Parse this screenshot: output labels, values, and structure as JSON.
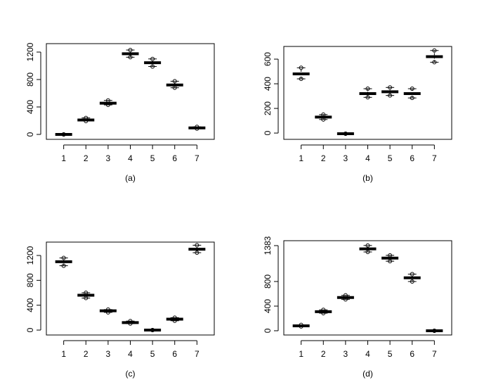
{
  "chart_data": [
    {
      "type": "box",
      "caption": "(a)",
      "categories": [
        "1",
        "2",
        "3",
        "4",
        "5",
        "6",
        "7"
      ],
      "medians": [
        0,
        210,
        455,
        1175,
        1045,
        720,
        95
      ],
      "lows": [
        0,
        195,
        430,
        1125,
        990,
        680,
        85
      ],
      "highs": [
        0,
        240,
        495,
        1230,
        1100,
        775,
        110
      ],
      "ylim": [
        -72,
        1323
      ],
      "yticks": [
        0,
        400,
        800,
        1200
      ]
    },
    {
      "type": "box",
      "caption": "(b)",
      "categories": [
        "1",
        "2",
        "3",
        "4",
        "5",
        "6",
        "7"
      ],
      "medians": [
        480,
        130,
        -5,
        320,
        335,
        320,
        620
      ],
      "lows": [
        440,
        110,
        -5,
        290,
        305,
        285,
        575
      ],
      "highs": [
        530,
        150,
        -5,
        360,
        370,
        360,
        670
      ],
      "ylim": [
        -51,
        703
      ],
      "yticks": [
        0,
        200,
        400,
        600
      ]
    },
    {
      "type": "box",
      "caption": "(c)",
      "categories": [
        "1",
        "2",
        "3",
        "4",
        "5",
        "6",
        "7"
      ],
      "medians": [
        1100,
        560,
        310,
        120,
        0,
        175,
        1300
      ],
      "lows": [
        1035,
        515,
        285,
        105,
        0,
        150,
        1245
      ],
      "highs": [
        1160,
        600,
        330,
        145,
        0,
        200,
        1365
      ],
      "ylim": [
        -79,
        1415
      ],
      "yticks": [
        0,
        400,
        800,
        1200
      ]
    },
    {
      "type": "box",
      "caption": "(d)",
      "categories": [
        "1",
        "2",
        "3",
        "4",
        "5",
        "6",
        "7"
      ],
      "medians": [
        80,
        310,
        540,
        1330,
        1180,
        860,
        0
      ],
      "lows": [
        70,
        285,
        510,
        1280,
        1130,
        800,
        0
      ],
      "highs": [
        95,
        340,
        575,
        1385,
        1225,
        920,
        0
      ],
      "ylim": [
        -69,
        1463
      ],
      "yticks": [
        0,
        400,
        800,
        1383
      ]
    }
  ]
}
